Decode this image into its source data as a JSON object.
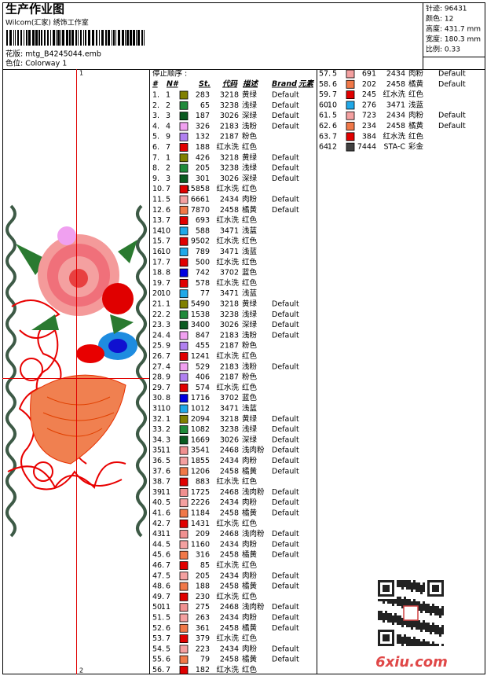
{
  "header": {
    "title": "生产作业图",
    "studio": "Wilcom(汇家) 绣饰工作室",
    "design": "花版: mtg_B4245044.emb",
    "colorway": "色位: Colorway 1"
  },
  "info": [
    "针迹: 96431",
    "颜色: 12",
    "高度: 431.7 mm",
    "宽度: 180.3 mm",
    "比例: 0.33"
  ],
  "markers": [
    "1",
    "2"
  ],
  "watermark": "6xiu.com",
  "stop_sequence": {
    "title": "停止顺序 :",
    "columns": [
      "#",
      "N#",
      "St.",
      "代码",
      "描述",
      "Brand",
      "元素"
    ],
    "palette": {
      "1": "#808000",
      "2": "#1f8a3a",
      "3": "#0a5a20",
      "4": "#f0a0f0",
      "5": "#f4a0a0",
      "6": "#f07848",
      "7": "#e00000",
      "8": "#0000e0",
      "9": "#b080f0",
      "10": "#20a8e8",
      "11": "#f09090",
      "12": "#404040"
    },
    "rows": [
      {
        "cells": [
          "1.",
          "1",
          "283",
          "3218",
          "黄绿",
          "Default"
        ]
      },
      {
        "cells": [
          "2.",
          "2",
          "65",
          "3238",
          "浅绿",
          "Default"
        ]
      },
      {
        "cells": [
          "3.",
          "3",
          "187",
          "3026",
          "深绿",
          "Default"
        ]
      },
      {
        "cells": [
          "4.",
          "4",
          "326",
          "2183",
          "浅粉",
          "Default"
        ]
      },
      {
        "cells": [
          "5.",
          "9",
          "132",
          "2187",
          "粉色"
        ]
      },
      {
        "cells": [
          "6.",
          "7",
          "188",
          "红水洗",
          "红色"
        ]
      },
      {
        "cells": [
          "7.",
          "1",
          "426",
          "3218",
          "黄绿",
          "Default"
        ]
      },
      {
        "cells": [
          "8.",
          "2",
          "205",
          "3238",
          "浅绿",
          "Default"
        ]
      },
      {
        "cells": [
          "9.",
          "3",
          "301",
          "3026",
          "深绿",
          "Default"
        ]
      },
      {
        "cells": [
          "10.",
          "7",
          "15858",
          "红水洗",
          "红色"
        ]
      },
      {
        "cells": [
          "11.",
          "5",
          "6661",
          "2434",
          "肉粉",
          "Default"
        ]
      },
      {
        "cells": [
          "12.",
          "6",
          "7870",
          "2458",
          "橘黄",
          "Default"
        ]
      },
      {
        "cells": [
          "13.",
          "7",
          "693",
          "红水洗",
          "红色"
        ]
      },
      {
        "cells": [
          "14.",
          "10",
          "588",
          "3471",
          "浅蓝"
        ]
      },
      {
        "cells": [
          "15.",
          "7",
          "9502",
          "红水洗",
          "红色"
        ]
      },
      {
        "cells": [
          "16.",
          "10",
          "789",
          "3471",
          "浅蓝"
        ]
      },
      {
        "cells": [
          "17.",
          "7",
          "500",
          "红水洗",
          "红色"
        ]
      },
      {
        "cells": [
          "18.",
          "8",
          "742",
          "3702",
          "蓝色"
        ]
      },
      {
        "cells": [
          "19.",
          "7",
          "578",
          "红水洗",
          "红色"
        ]
      },
      {
        "cells": [
          "20.",
          "10",
          "77",
          "3471",
          "浅蓝"
        ]
      },
      {
        "cells": [
          "21.",
          "1",
          "5490",
          "3218",
          "黄绿",
          "Default"
        ]
      },
      {
        "cells": [
          "22.",
          "2",
          "1538",
          "3238",
          "浅绿",
          "Default"
        ]
      },
      {
        "cells": [
          "23.",
          "3",
          "3400",
          "3026",
          "深绿",
          "Default"
        ]
      },
      {
        "cells": [
          "24.",
          "4",
          "847",
          "2183",
          "浅粉",
          "Default"
        ]
      },
      {
        "cells": [
          "25.",
          "9",
          "455",
          "2187",
          "粉色"
        ]
      },
      {
        "cells": [
          "26.",
          "7",
          "1241",
          "红水洗",
          "红色"
        ]
      },
      {
        "cells": [
          "27.",
          "4",
          "529",
          "2183",
          "浅粉",
          "Default"
        ]
      },
      {
        "cells": [
          "28.",
          "9",
          "406",
          "2187",
          "粉色"
        ]
      },
      {
        "cells": [
          "29.",
          "7",
          "574",
          "红水洗",
          "红色"
        ]
      },
      {
        "cells": [
          "30.",
          "8",
          "1716",
          "3702",
          "蓝色"
        ]
      },
      {
        "cells": [
          "31.",
          "10",
          "1012",
          "3471",
          "浅蓝"
        ]
      },
      {
        "cells": [
          "32.",
          "1",
          "2094",
          "3218",
          "黄绿",
          "Default"
        ]
      },
      {
        "cells": [
          "33.",
          "2",
          "1082",
          "3238",
          "浅绿",
          "Default"
        ]
      },
      {
        "cells": [
          "34.",
          "3",
          "1669",
          "3026",
          "深绿",
          "Default"
        ]
      },
      {
        "cells": [
          "35.",
          "11",
          "3541",
          "2468",
          "浅肉粉",
          "Default"
        ]
      },
      {
        "cells": [
          "36.",
          "5",
          "1855",
          "2434",
          "肉粉",
          "Default"
        ]
      },
      {
        "cells": [
          "37.",
          "6",
          "1206",
          "2458",
          "橘黄",
          "Default"
        ]
      },
      {
        "cells": [
          "38.",
          "7",
          "883",
          "红水洗",
          "红色"
        ]
      },
      {
        "cells": [
          "39.",
          "11",
          "1725",
          "2468",
          "浅肉粉",
          "Default"
        ]
      },
      {
        "cells": [
          "40.",
          "5",
          "2226",
          "2434",
          "肉粉",
          "Default"
        ]
      },
      {
        "cells": [
          "41.",
          "6",
          "1184",
          "2458",
          "橘黄",
          "Default"
        ]
      },
      {
        "cells": [
          "42.",
          "7",
          "1431",
          "红水洗",
          "红色"
        ]
      },
      {
        "cells": [
          "43.",
          "11",
          "209",
          "2468",
          "浅肉粉",
          "Default"
        ]
      },
      {
        "cells": [
          "44.",
          "5",
          "1160",
          "2434",
          "肉粉",
          "Default"
        ]
      },
      {
        "cells": [
          "45.",
          "6",
          "316",
          "2458",
          "橘黄",
          "Default"
        ]
      },
      {
        "cells": [
          "46.",
          "7",
          "85",
          "红水洗",
          "红色"
        ]
      },
      {
        "cells": [
          "47.",
          "5",
          "205",
          "2434",
          "肉粉",
          "Default"
        ]
      },
      {
        "cells": [
          "48.",
          "6",
          "188",
          "2458",
          "橘黄",
          "Default"
        ]
      },
      {
        "cells": [
          "49.",
          "7",
          "230",
          "红水洗",
          "红色"
        ]
      },
      {
        "cells": [
          "50.",
          "11",
          "275",
          "2468",
          "浅肉粉",
          "Default"
        ]
      },
      {
        "cells": [
          "51.",
          "5",
          "263",
          "2434",
          "肉粉",
          "Default"
        ]
      },
      {
        "cells": [
          "52.",
          "6",
          "361",
          "2458",
          "橘黄",
          "Default"
        ]
      },
      {
        "cells": [
          "53.",
          "7",
          "379",
          "红水洗",
          "红色"
        ]
      },
      {
        "cells": [
          "54.",
          "5",
          "223",
          "2434",
          "肉粉",
          "Default"
        ]
      },
      {
        "cells": [
          "55.",
          "6",
          "79",
          "2458",
          "橘黄",
          "Default"
        ]
      },
      {
        "cells": [
          "56.",
          "7",
          "182",
          "红水洗",
          "红色"
        ]
      },
      {
        "cells": [
          "57.",
          "5",
          "691",
          "2434",
          "肉粉",
          "Default"
        ]
      },
      {
        "cells": [
          "58.",
          "6",
          "202",
          "2458",
          "橘黄",
          "Default"
        ]
      },
      {
        "cells": [
          "59.",
          "7",
          "245",
          "红水洗",
          "红色"
        ]
      },
      {
        "cells": [
          "60.",
          "10",
          "276",
          "3471",
          "浅蓝"
        ]
      },
      {
        "cells": [
          "61.",
          "5",
          "723",
          "2434",
          "肉粉",
          "Default"
        ]
      },
      {
        "cells": [
          "62.",
          "6",
          "234",
          "2458",
          "橘黄",
          "Default"
        ]
      },
      {
        "cells": [
          "63.",
          "7",
          "384",
          "红水洗",
          "红色"
        ]
      },
      {
        "cells": [
          "64.",
          "12",
          "7444",
          "STA-C",
          "彩金"
        ]
      }
    ]
  }
}
